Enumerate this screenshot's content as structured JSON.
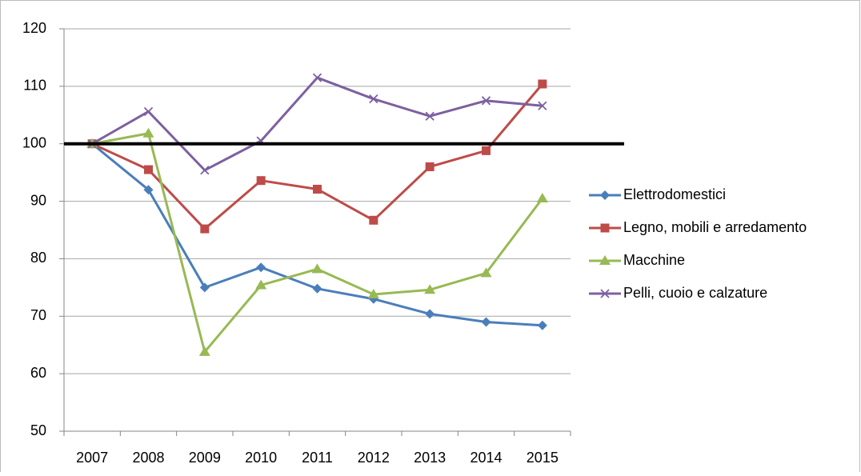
{
  "chart_data": {
    "type": "line",
    "categories": [
      "2007",
      "2008",
      "2009",
      "2010",
      "2011",
      "2012",
      "2013",
      "2014",
      "2015"
    ],
    "series": [
      {
        "name": "Elettrodomestici",
        "color": "#4a7ebb",
        "marker": "diamond",
        "values": [
          100,
          92,
          75,
          78.5,
          74.8,
          73,
          70.4,
          69,
          68.4
        ]
      },
      {
        "name": "Legno, mobili e arredamento",
        "color": "#be4b48",
        "marker": "square",
        "values": [
          100,
          95.5,
          85.2,
          93.6,
          92.1,
          86.7,
          96,
          98.8,
          110.4
        ]
      },
      {
        "name": "Macchine",
        "color": "#98b954",
        "marker": "triangle",
        "values": [
          100,
          101.8,
          63.8,
          75.4,
          78.2,
          73.8,
          74.6,
          77.5,
          90.5
        ]
      },
      {
        "name": "Pelli, cuoio e calzature",
        "color": "#7d60a0",
        "marker": "x",
        "values": [
          100,
          105.6,
          95.4,
          100.5,
          111.5,
          107.8,
          104.8,
          107.5,
          106.6
        ]
      }
    ],
    "reference_line": 100,
    "ylim": [
      50,
      120
    ],
    "yticks": [
      50,
      60,
      70,
      80,
      90,
      100,
      110,
      120
    ],
    "grid": true,
    "legend": "right"
  }
}
